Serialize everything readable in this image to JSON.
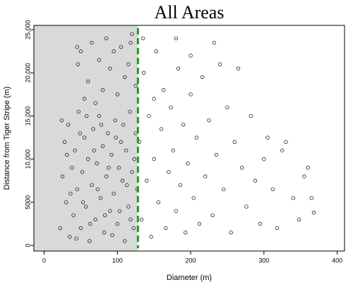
{
  "chart_data": {
    "type": "scatter",
    "title": "All Areas",
    "x_label": "Diameter (m)",
    "y_label": "Distance from Tiger Stripe (m)",
    "color": "#000000",
    "shade_color": "#d9d9d9",
    "vline": {
      "x": 128,
      "color": "#1f9a1f"
    },
    "xlim": [
      -14,
      410
    ],
    "ylim": [
      -650,
      25500
    ],
    "xticks": [
      0,
      100,
      200,
      300,
      400
    ],
    "yticks": [
      0,
      5000,
      {
        "value": 10000,
        "label": "10,000"
      },
      {
        "value": 15000,
        "label": "15,000"
      },
      {
        "value": 20000,
        "label": "20,000"
      },
      {
        "value": 25000,
        "label": "25,000"
      }
    ],
    "x": [
      22,
      25,
      28,
      30,
      33,
      35,
      38,
      40,
      42,
      45,
      47,
      50,
      52,
      55,
      57,
      60,
      62,
      65,
      67,
      70,
      72,
      75,
      77,
      80,
      82,
      85,
      87,
      90,
      92,
      95,
      97,
      100,
      102,
      105,
      107,
      110,
      112,
      115,
      117,
      120,
      122,
      125,
      127,
      24,
      31,
      36,
      44,
      49,
      53,
      58,
      63,
      68,
      73,
      78,
      83,
      88,
      93,
      98,
      103,
      108,
      113,
      118,
      123,
      46,
      50,
      60,
      65,
      75,
      80,
      85,
      90,
      95,
      100,
      105,
      110,
      115,
      120,
      125,
      55,
      70,
      45,
      118,
      130,
      133,
      136,
      140,
      143,
      146,
      150,
      153,
      156,
      160,
      163,
      166,
      170,
      173,
      176,
      180,
      183,
      186,
      190,
      193,
      196,
      200,
      204,
      208,
      212,
      216,
      220,
      225,
      230,
      235,
      240,
      245,
      250,
      255,
      260,
      265,
      270,
      276,
      282,
      288,
      295,
      300,
      305,
      312,
      318,
      325,
      330,
      340,
      348,
      355,
      360,
      365,
      368,
      232,
      200,
      180,
      150,
      135
    ],
    "values": [
      2000,
      8000,
      12000,
      5000,
      14000,
      1000,
      9000,
      3500,
      11000,
      6500,
      15500,
      2000,
      8500,
      12500,
      4500,
      10000,
      500,
      7000,
      13500,
      3000,
      9500,
      15000,
      5500,
      11500,
      1500,
      8000,
      13000,
      4000,
      10500,
      6000,
      14500,
      2500,
      9000,
      12000,
      7500,
      500,
      11000,
      4500,
      15500,
      8500,
      2000,
      13000,
      6500,
      14500,
      10500,
      6000,
      800,
      13000,
      5000,
      15000,
      2500,
      11000,
      6500,
      14000,
      3500,
      9000,
      1200,
      12500,
      4000,
      14000,
      7000,
      3000,
      10000,
      21000,
      22500,
      19000,
      23500,
      21500,
      18000,
      24000,
      20500,
      22500,
      17500,
      23000,
      19500,
      21000,
      24500,
      18500,
      17000,
      16500,
      23000,
      23500,
      12000,
      3000,
      20000,
      7500,
      15000,
      1000,
      10000,
      22500,
      5000,
      13500,
      18000,
      2000,
      8500,
      16000,
      11000,
      4000,
      20500,
      7000,
      14000,
      1500,
      9500,
      17500,
      5500,
      12500,
      2500,
      19500,
      8000,
      14500,
      3500,
      10500,
      21000,
      6500,
      16000,
      1500,
      12000,
      20500,
      9000,
      4500,
      15000,
      7500,
      2500,
      10000,
      12500,
      6500,
      2000,
      11000,
      12000,
      5500,
      3000,
      8000,
      9000,
      5500,
      3800,
      23500,
      22000,
      24000,
      17000,
      24000
    ]
  }
}
